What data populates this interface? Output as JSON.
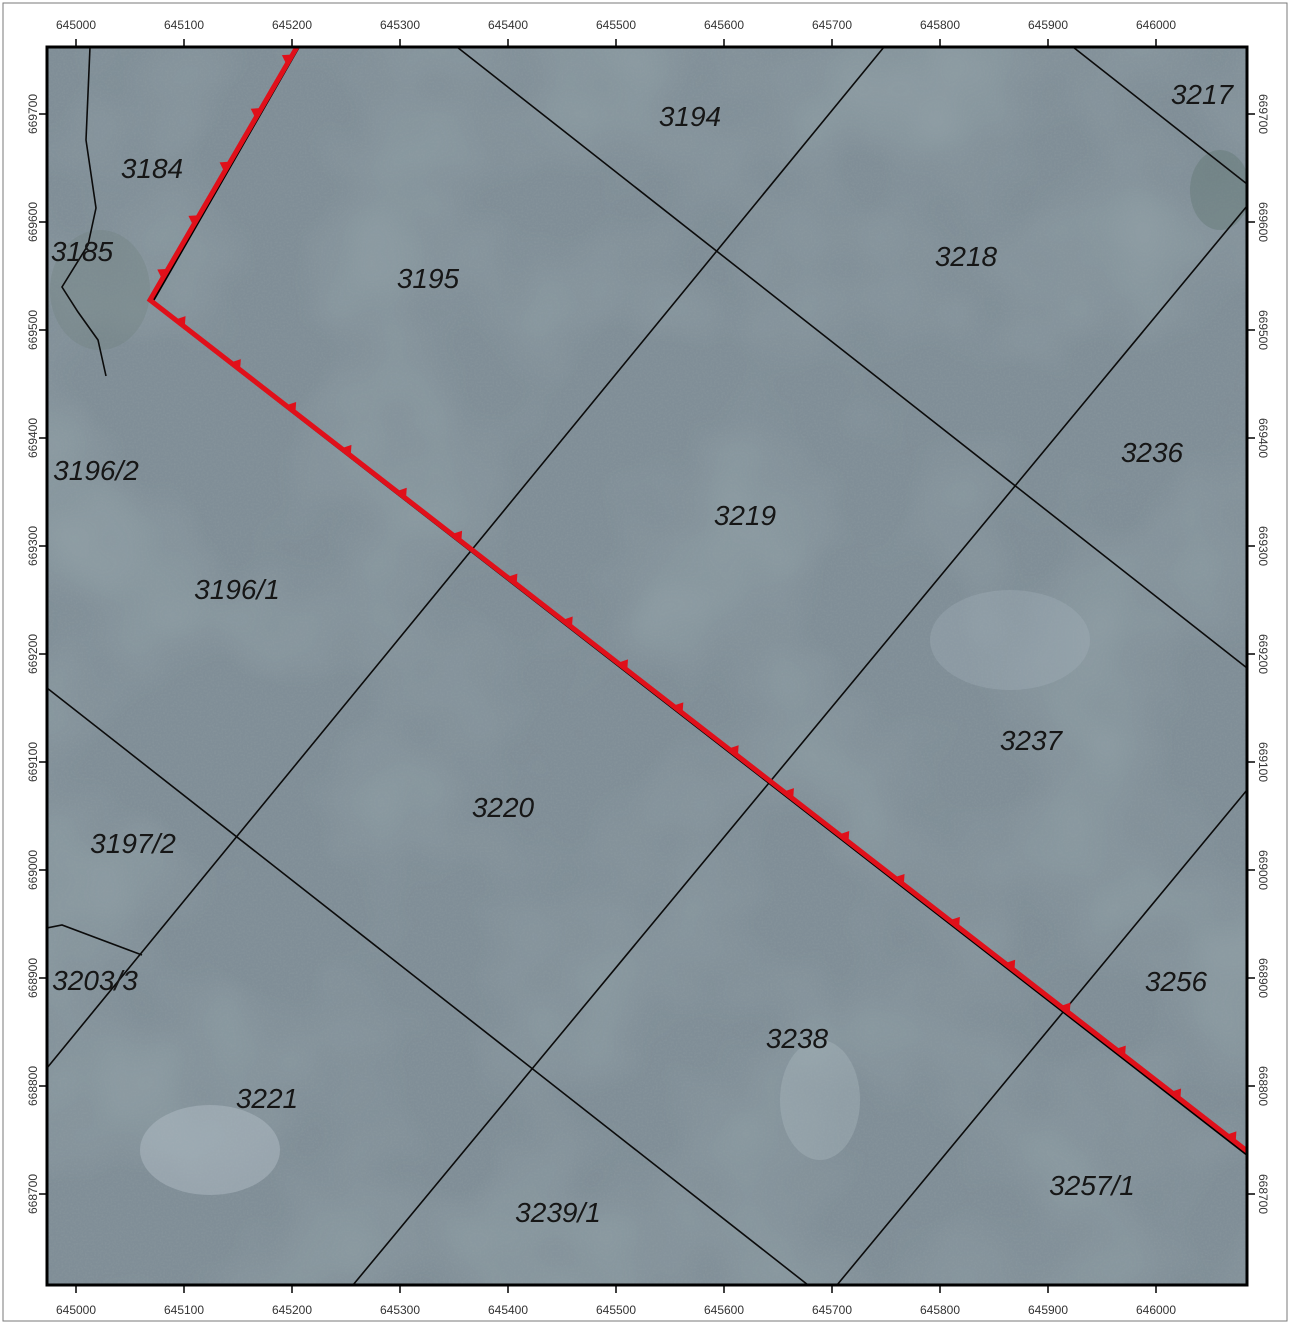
{
  "map": {
    "x_ticks": [
      "645000",
      "645100",
      "645200",
      "645300",
      "645400",
      "645500",
      "645600",
      "645700",
      "645800",
      "645900",
      "646000"
    ],
    "y_ticks": [
      "669700",
      "669600",
      "669500",
      "669400",
      "669300",
      "669200",
      "669100",
      "669000",
      "668900",
      "668800",
      "668700"
    ],
    "parcels": [
      {
        "id": "3194",
        "label": "3194"
      },
      {
        "id": "3217",
        "label": "3217"
      },
      {
        "id": "3184",
        "label": "3184"
      },
      {
        "id": "3185",
        "label": "3185"
      },
      {
        "id": "3195",
        "label": "3195"
      },
      {
        "id": "3218",
        "label": "3218"
      },
      {
        "id": "3236",
        "label": "3236"
      },
      {
        "id": "3196-2",
        "label": "3196/2"
      },
      {
        "id": "3219",
        "label": "3219"
      },
      {
        "id": "3196-1",
        "label": "3196/1"
      },
      {
        "id": "3237",
        "label": "3237"
      },
      {
        "id": "3220",
        "label": "3220"
      },
      {
        "id": "3197-2",
        "label": "3197/2"
      },
      {
        "id": "3256",
        "label": "3256"
      },
      {
        "id": "3203-3",
        "label": "3203/3"
      },
      {
        "id": "3238",
        "label": "3238"
      },
      {
        "id": "3221",
        "label": "3221"
      },
      {
        "id": "3257-1",
        "label": "3257/1"
      },
      {
        "id": "3239-1",
        "label": "3239/1"
      }
    ],
    "colors": {
      "boundary": "#e0101a",
      "parcel_lines": "#0b0b0b",
      "imagery_base": "#7f8e97"
    }
  }
}
